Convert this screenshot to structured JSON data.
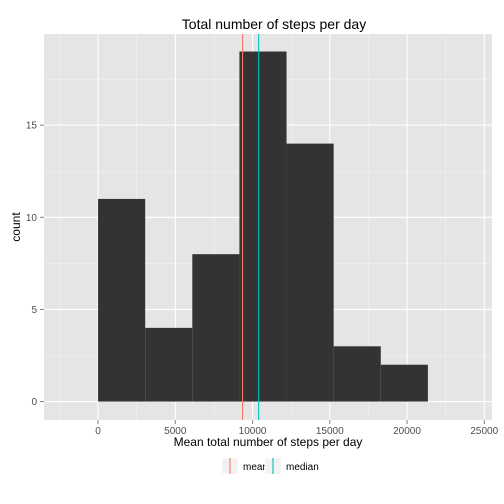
{
  "chart_data": {
    "type": "bar",
    "title": "Total number of steps per day",
    "xlabel": "Mean total number of steps per day",
    "ylabel": "count",
    "xlim": [
      -3500,
      25500
    ],
    "ylim": [
      -1,
      19.95
    ],
    "x_ticks": [
      0,
      5000,
      10000,
      15000,
      20000,
      25000
    ],
    "x_tick_labels": [
      "0",
      "5000",
      "10000",
      "15000",
      "20000",
      "25000"
    ],
    "y_ticks": [
      0,
      5,
      10,
      15
    ],
    "y_tick_labels": [
      "0",
      "5",
      "10",
      "15"
    ],
    "bins": [
      {
        "start": 0,
        "end": 3050,
        "count": 11
      },
      {
        "start": 3050,
        "end": 6100,
        "count": 4
      },
      {
        "start": 6100,
        "end": 9150,
        "count": 8
      },
      {
        "start": 9150,
        "end": 12200,
        "count": 19
      },
      {
        "start": 12200,
        "end": 15250,
        "count": 14
      },
      {
        "start": 15250,
        "end": 18300,
        "count": 3
      },
      {
        "start": 18300,
        "end": 21350,
        "count": 2
      }
    ],
    "bar_color": "#333333",
    "panel_background": "#e5e5e5",
    "grid": true,
    "vlines": [
      {
        "name": "mean",
        "value": 9354,
        "color": "#f8766d"
      },
      {
        "name": "median",
        "value": 10395,
        "color": "#00bfc4"
      }
    ],
    "legend": {
      "position": "bottom",
      "items": [
        {
          "label": "mean",
          "color": "#f8766d"
        },
        {
          "label": "median",
          "color": "#00bfc4"
        }
      ]
    }
  }
}
